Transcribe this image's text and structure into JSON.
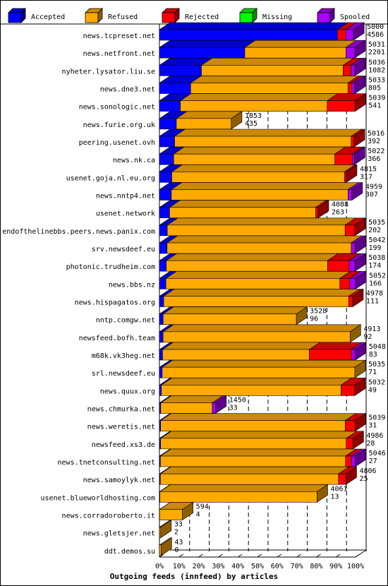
{
  "chart_data": {
    "type": "bar",
    "orientation": "horizontal",
    "stacked": true,
    "xlabel": "Outgoing feeds (innfeed) by articles",
    "x_ticks": [
      "0%",
      "10%",
      "20%",
      "30%",
      "40%",
      "50%",
      "60%",
      "70%",
      "80%",
      "90%",
      "100%"
    ],
    "legend_position": "top",
    "legend": [
      {
        "name": "Accepted",
        "color": "#0000ff"
      },
      {
        "name": "Refused",
        "color": "#ffaa00"
      },
      {
        "name": "Rejected",
        "color": "#ff0000"
      },
      {
        "name": "Missing",
        "color": "#00ff00"
      },
      {
        "name": "Spooled",
        "color": "#aa00ff"
      }
    ],
    "rows": [
      {
        "name": "news.tcpreset.net",
        "total": "5000",
        "accepted": "4586",
        "seg": [
          0.917,
          0.0,
          0.043,
          0.0,
          0.04
        ]
      },
      {
        "name": "news.netfront.net",
        "total": "5031",
        "accepted": "2201",
        "seg": [
          0.437,
          0.518,
          0.0,
          0.0,
          0.045
        ]
      },
      {
        "name": "nyheter.lysator.liu.se",
        "total": "5036",
        "accepted": "1082",
        "seg": [
          0.215,
          0.725,
          0.04,
          0.0,
          0.02
        ]
      },
      {
        "name": "news.dne3.net",
        "total": "5033",
        "accepted": "805",
        "seg": [
          0.16,
          0.805,
          0.02,
          0.0,
          0.015
        ]
      },
      {
        "name": "news.sonologic.net",
        "total": "5039",
        "accepted": "541",
        "seg": [
          0.107,
          0.751,
          0.142,
          0.0,
          0.0
        ]
      },
      {
        "name": "news.furie.org.uk",
        "total": "1853",
        "accepted": "435",
        "seg": [
          0.235,
          0.765,
          0.0,
          0.0,
          0.0
        ]
      },
      {
        "name": "peering.usenet.ovh",
        "total": "5016",
        "accepted": "392",
        "seg": [
          0.078,
          0.907,
          0.015,
          0.0,
          0.0
        ]
      },
      {
        "name": "news.nk.ca",
        "total": "5022",
        "accepted": "366",
        "seg": [
          0.073,
          0.827,
          0.09,
          0.0,
          0.01
        ]
      },
      {
        "name": "usenet.goja.nl.eu.org",
        "total": "4815",
        "accepted": "317",
        "seg": [
          0.066,
          0.924,
          0.01,
          0.0,
          0.0
        ]
      },
      {
        "name": "news.nntp4.net",
        "total": "4959",
        "accepted": "307",
        "seg": [
          0.062,
          0.918,
          0.0,
          0.0,
          0.02
        ]
      },
      {
        "name": "usenet.network",
        "total": "4088",
        "accepted": "263",
        "seg": [
          0.064,
          0.921,
          0.015,
          0.0,
          0.0
        ]
      },
      {
        "name": "endofthelinebbs.peers.news.panix.com",
        "total": "5035",
        "accepted": "202",
        "seg": [
          0.04,
          0.91,
          0.05,
          0.0,
          0.0
        ]
      },
      {
        "name": "srv.newsdeef.eu",
        "total": "5042",
        "accepted": "199",
        "seg": [
          0.039,
          0.941,
          0.0,
          0.0,
          0.02
        ]
      },
      {
        "name": "photonic.trudheim.com",
        "total": "5038",
        "accepted": "174",
        "seg": [
          0.035,
          0.825,
          0.11,
          0.0,
          0.03
        ]
      },
      {
        "name": "news.bbs.nz",
        "total": "5052",
        "accepted": "166",
        "seg": [
          0.033,
          0.887,
          0.05,
          0.0,
          0.03
        ]
      },
      {
        "name": "news.hispagatos.org",
        "total": "4978",
        "accepted": "111",
        "seg": [
          0.022,
          0.958,
          0.02,
          0.0,
          0.0
        ]
      },
      {
        "name": "nntp.comgw.net",
        "total": "3528",
        "accepted": "96",
        "seg": [
          0.027,
          0.973,
          0.0,
          0.0,
          0.0
        ]
      },
      {
        "name": "newsfeed.bofh.team",
        "total": "4913",
        "accepted": "92",
        "seg": [
          0.019,
          0.981,
          0.0,
          0.0,
          0.0
        ]
      },
      {
        "name": "m68k.vk3heg.net",
        "total": "5048",
        "accepted": "83",
        "seg": [
          0.016,
          0.749,
          0.215,
          0.0,
          0.02
        ]
      },
      {
        "name": "srl.newsdeef.eu",
        "total": "5035",
        "accepted": "71",
        "seg": [
          0.014,
          0.986,
          0.0,
          0.0,
          0.0
        ]
      },
      {
        "name": "news.quux.org",
        "total": "5032",
        "accepted": "49",
        "seg": [
          0.01,
          0.92,
          0.07,
          0.0,
          0.0
        ]
      },
      {
        "name": "news.chmurka.net",
        "total": "1450",
        "accepted": "33",
        "seg": [
          0.023,
          0.917,
          0.0,
          0.0,
          0.06
        ]
      },
      {
        "name": "news.weretis.net",
        "total": "5039",
        "accepted": "31",
        "seg": [
          0.006,
          0.944,
          0.05,
          0.0,
          0.0
        ]
      },
      {
        "name": "newsfeed.xs3.de",
        "total": "4986",
        "accepted": "28",
        "seg": [
          0.006,
          0.959,
          0.035,
          0.0,
          0.0
        ]
      },
      {
        "name": "news.tnetconsulting.net",
        "total": "5046",
        "accepted": "27",
        "seg": [
          0.005,
          0.945,
          0.03,
          0.0,
          0.02
        ]
      },
      {
        "name": "news.samoylyk.net",
        "total": "4806",
        "accepted": "25",
        "seg": [
          0.005,
          0.955,
          0.04,
          0.0,
          0.0
        ]
      },
      {
        "name": "usenet.blueworldhosting.com",
        "total": "4061",
        "accepted": "13",
        "seg": [
          0.003,
          0.997,
          0.0,
          0.0,
          0.0
        ]
      },
      {
        "name": "news.corradoroberto.it",
        "total": "594",
        "accepted": "4",
        "seg": [
          0.007,
          0.993,
          0.0,
          0.0,
          0.0
        ]
      },
      {
        "name": "news.gletsjer.net",
        "total": "33",
        "accepted": "2",
        "seg": [
          0.06,
          0.94,
          0.0,
          0.0,
          0.0
        ]
      },
      {
        "name": "ddt.demos.su",
        "total": "43",
        "accepted": "0",
        "seg": [
          0.0,
          1.0,
          0.0,
          0.0,
          0.0
        ]
      }
    ]
  }
}
